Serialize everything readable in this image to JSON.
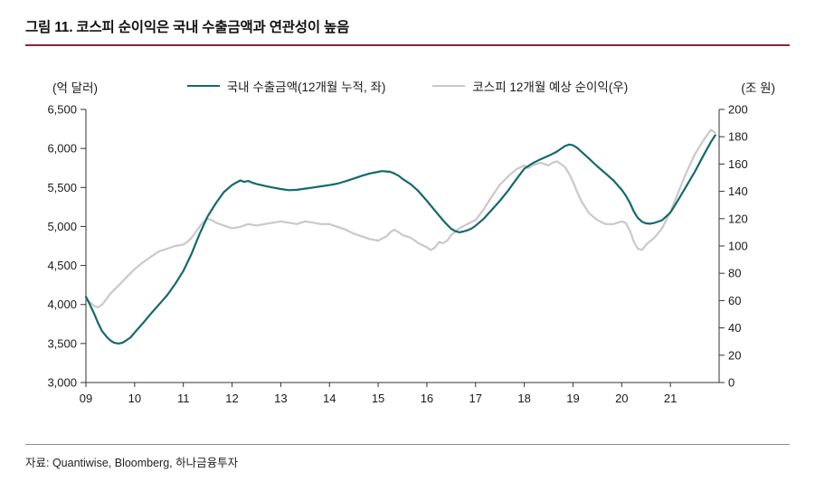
{
  "page": {
    "title": "그림 11. 코스피 순이익은 국내 수출금액과 연관성이 높음",
    "source": "자료: Quantiwise, Bloomberg, 하나금융투자"
  },
  "colors": {
    "title_rule": "#8a2433",
    "footer_rule": "#8f8f8f",
    "axis": "#333333",
    "export_line": "#15696e",
    "profit_line": "#c9c9c9"
  },
  "chart_data": {
    "type": "line",
    "title": "그림 11. 코스피 순이익은 국내 수출금액과 연관성이 높음",
    "legend_position": "top",
    "grid": false,
    "left_axis": {
      "label": "(억 달러)",
      "min": 3000,
      "max": 6500,
      "step": 500
    },
    "right_axis": {
      "label": "(조 원)",
      "min": 0,
      "max": 200,
      "step": 20
    },
    "x_axis": {
      "min": 2009,
      "max": 2022,
      "tick_years": [
        2009,
        2010,
        2011,
        2012,
        2013,
        2014,
        2015,
        2016,
        2017,
        2018,
        2019,
        2020,
        2021
      ],
      "tick_labels": [
        "09",
        "10",
        "11",
        "12",
        "13",
        "14",
        "15",
        "16",
        "17",
        "18",
        "19",
        "20",
        "21"
      ]
    },
    "series": [
      {
        "name": "국내 수출금액(12개월 누적, 좌)",
        "axis": "left",
        "color": "#15696e",
        "width": 2.2,
        "points": [
          [
            2009.0,
            4100
          ],
          [
            2009.08,
            4000
          ],
          [
            2009.17,
            3880
          ],
          [
            2009.25,
            3760
          ],
          [
            2009.33,
            3660
          ],
          [
            2009.42,
            3590
          ],
          [
            2009.5,
            3540
          ],
          [
            2009.58,
            3510
          ],
          [
            2009.67,
            3500
          ],
          [
            2009.75,
            3510
          ],
          [
            2009.83,
            3540
          ],
          [
            2009.92,
            3580
          ],
          [
            2010.0,
            3640
          ],
          [
            2010.17,
            3760
          ],
          [
            2010.33,
            3880
          ],
          [
            2010.5,
            4000
          ],
          [
            2010.67,
            4120
          ],
          [
            2010.83,
            4260
          ],
          [
            2011.0,
            4430
          ],
          [
            2011.17,
            4650
          ],
          [
            2011.33,
            4900
          ],
          [
            2011.5,
            5130
          ],
          [
            2011.67,
            5300
          ],
          [
            2011.83,
            5440
          ],
          [
            2012.0,
            5530
          ],
          [
            2012.08,
            5560
          ],
          [
            2012.17,
            5590
          ],
          [
            2012.25,
            5570
          ],
          [
            2012.33,
            5585
          ],
          [
            2012.42,
            5560
          ],
          [
            2012.5,
            5545
          ],
          [
            2012.67,
            5520
          ],
          [
            2012.83,
            5500
          ],
          [
            2013.0,
            5480
          ],
          [
            2013.17,
            5465
          ],
          [
            2013.33,
            5470
          ],
          [
            2013.5,
            5485
          ],
          [
            2013.67,
            5500
          ],
          [
            2013.83,
            5515
          ],
          [
            2014.0,
            5530
          ],
          [
            2014.17,
            5550
          ],
          [
            2014.33,
            5580
          ],
          [
            2014.5,
            5615
          ],
          [
            2014.67,
            5650
          ],
          [
            2014.83,
            5680
          ],
          [
            2015.0,
            5700
          ],
          [
            2015.08,
            5710
          ],
          [
            2015.17,
            5705
          ],
          [
            2015.25,
            5700
          ],
          [
            2015.33,
            5680
          ],
          [
            2015.42,
            5650
          ],
          [
            2015.5,
            5610
          ],
          [
            2015.67,
            5540
          ],
          [
            2015.83,
            5450
          ],
          [
            2016.0,
            5330
          ],
          [
            2016.17,
            5200
          ],
          [
            2016.33,
            5080
          ],
          [
            2016.42,
            5020
          ],
          [
            2016.5,
            4970
          ],
          [
            2016.58,
            4940
          ],
          [
            2016.67,
            4925
          ],
          [
            2016.75,
            4935
          ],
          [
            2016.83,
            4950
          ],
          [
            2016.92,
            4975
          ],
          [
            2017.0,
            5010
          ],
          [
            2017.17,
            5100
          ],
          [
            2017.33,
            5210
          ],
          [
            2017.5,
            5330
          ],
          [
            2017.67,
            5460
          ],
          [
            2017.83,
            5600
          ],
          [
            2018.0,
            5740
          ],
          [
            2018.17,
            5810
          ],
          [
            2018.33,
            5860
          ],
          [
            2018.5,
            5905
          ],
          [
            2018.67,
            5960
          ],
          [
            2018.83,
            6030
          ],
          [
            2018.92,
            6050
          ],
          [
            2019.0,
            6040
          ],
          [
            2019.08,
            6010
          ],
          [
            2019.17,
            5960
          ],
          [
            2019.33,
            5870
          ],
          [
            2019.5,
            5770
          ],
          [
            2019.67,
            5680
          ],
          [
            2019.83,
            5590
          ],
          [
            2020.0,
            5470
          ],
          [
            2020.08,
            5400
          ],
          [
            2020.17,
            5300
          ],
          [
            2020.25,
            5190
          ],
          [
            2020.33,
            5110
          ],
          [
            2020.42,
            5060
          ],
          [
            2020.5,
            5040
          ],
          [
            2020.58,
            5035
          ],
          [
            2020.67,
            5045
          ],
          [
            2020.83,
            5080
          ],
          [
            2021.0,
            5180
          ],
          [
            2021.08,
            5260
          ],
          [
            2021.17,
            5350
          ],
          [
            2021.33,
            5520
          ],
          [
            2021.5,
            5700
          ],
          [
            2021.67,
            5900
          ],
          [
            2021.83,
            6080
          ],
          [
            2021.92,
            6170
          ]
        ]
      },
      {
        "name": "코스피 12개월 예상 순이익(우)",
        "axis": "right",
        "color": "#c9c9c9",
        "width": 2.2,
        "points": [
          [
            2009.0,
            62
          ],
          [
            2009.08,
            59
          ],
          [
            2009.17,
            56
          ],
          [
            2009.25,
            55
          ],
          [
            2009.33,
            57
          ],
          [
            2009.42,
            61
          ],
          [
            2009.5,
            65
          ],
          [
            2009.67,
            71
          ],
          [
            2009.83,
            77
          ],
          [
            2010.0,
            83
          ],
          [
            2010.17,
            88
          ],
          [
            2010.33,
            92
          ],
          [
            2010.5,
            96
          ],
          [
            2010.67,
            98
          ],
          [
            2010.83,
            100
          ],
          [
            2011.0,
            101
          ],
          [
            2011.08,
            103
          ],
          [
            2011.17,
            106
          ],
          [
            2011.25,
            110
          ],
          [
            2011.33,
            114
          ],
          [
            2011.42,
            118
          ],
          [
            2011.5,
            120
          ],
          [
            2011.58,
            119
          ],
          [
            2011.67,
            117
          ],
          [
            2011.83,
            115
          ],
          [
            2012.0,
            113
          ],
          [
            2012.17,
            114
          ],
          [
            2012.33,
            116
          ],
          [
            2012.5,
            115
          ],
          [
            2012.67,
            116
          ],
          [
            2012.83,
            117
          ],
          [
            2013.0,
            118
          ],
          [
            2013.17,
            117
          ],
          [
            2013.33,
            116
          ],
          [
            2013.5,
            118
          ],
          [
            2013.67,
            117
          ],
          [
            2013.83,
            116
          ],
          [
            2014.0,
            116
          ],
          [
            2014.17,
            114
          ],
          [
            2014.33,
            112
          ],
          [
            2014.5,
            109
          ],
          [
            2014.67,
            107
          ],
          [
            2014.83,
            105
          ],
          [
            2015.0,
            104
          ],
          [
            2015.17,
            107
          ],
          [
            2015.25,
            110
          ],
          [
            2015.33,
            112
          ],
          [
            2015.42,
            110
          ],
          [
            2015.5,
            108
          ],
          [
            2015.67,
            106
          ],
          [
            2015.83,
            102
          ],
          [
            2016.0,
            99
          ],
          [
            2016.08,
            97
          ],
          [
            2016.17,
            99
          ],
          [
            2016.25,
            103
          ],
          [
            2016.33,
            102
          ],
          [
            2016.42,
            104
          ],
          [
            2016.5,
            108
          ],
          [
            2016.67,
            113
          ],
          [
            2016.83,
            116
          ],
          [
            2017.0,
            119
          ],
          [
            2017.17,
            127
          ],
          [
            2017.33,
            136
          ],
          [
            2017.5,
            145
          ],
          [
            2017.67,
            151
          ],
          [
            2017.83,
            156
          ],
          [
            2018.0,
            159
          ],
          [
            2018.08,
            157
          ],
          [
            2018.17,
            159
          ],
          [
            2018.33,
            161
          ],
          [
            2018.42,
            160
          ],
          [
            2018.5,
            159
          ],
          [
            2018.58,
            161
          ],
          [
            2018.67,
            162
          ],
          [
            2018.83,
            158
          ],
          [
            2018.92,
            153
          ],
          [
            2019.0,
            147
          ],
          [
            2019.08,
            140
          ],
          [
            2019.17,
            133
          ],
          [
            2019.33,
            124
          ],
          [
            2019.5,
            119
          ],
          [
            2019.67,
            116
          ],
          [
            2019.83,
            116
          ],
          [
            2020.0,
            118
          ],
          [
            2020.08,
            117
          ],
          [
            2020.17,
            111
          ],
          [
            2020.25,
            103
          ],
          [
            2020.33,
            98
          ],
          [
            2020.42,
            97
          ],
          [
            2020.5,
            101
          ],
          [
            2020.67,
            106
          ],
          [
            2020.83,
            113
          ],
          [
            2021.0,
            125
          ],
          [
            2021.17,
            140
          ],
          [
            2021.33,
            154
          ],
          [
            2021.5,
            167
          ],
          [
            2021.67,
            177
          ],
          [
            2021.83,
            185
          ],
          [
            2021.92,
            183
          ]
        ]
      }
    ]
  }
}
